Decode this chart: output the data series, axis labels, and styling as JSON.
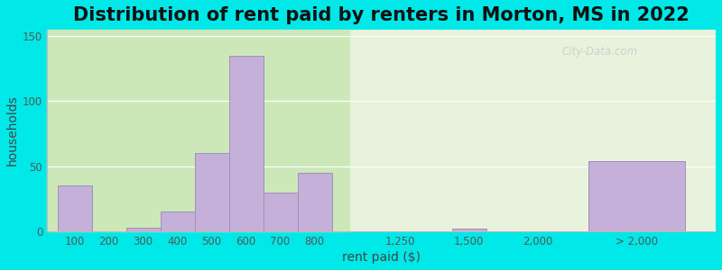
{
  "title": "Distribution of rent paid by renters in Morton, MS in 2022",
  "xlabel": "rent paid ($)",
  "ylabel": "households",
  "bar_color": "#c4b0d8",
  "bar_edgecolor": "#a090bb",
  "background_outer": "#00e8e8",
  "background_inner": "#e8f2dc",
  "background_inner_left": "#cce8b8",
  "ylim": [
    0,
    155
  ],
  "yticks": [
    0,
    50,
    100,
    150
  ],
  "categories": [
    "100",
    "200",
    "300",
    "400",
    "500",
    "600",
    "700",
    "800",
    "1,250",
    "1,500",
    "2,000",
    "> 2,000"
  ],
  "values": [
    35,
    0,
    3,
    15,
    60,
    135,
    30,
    45,
    0,
    2,
    0,
    54
  ],
  "watermark": "City-Data.com",
  "title_fontsize": 15,
  "axis_label_fontsize": 10,
  "tick_fontsize": 8.5
}
